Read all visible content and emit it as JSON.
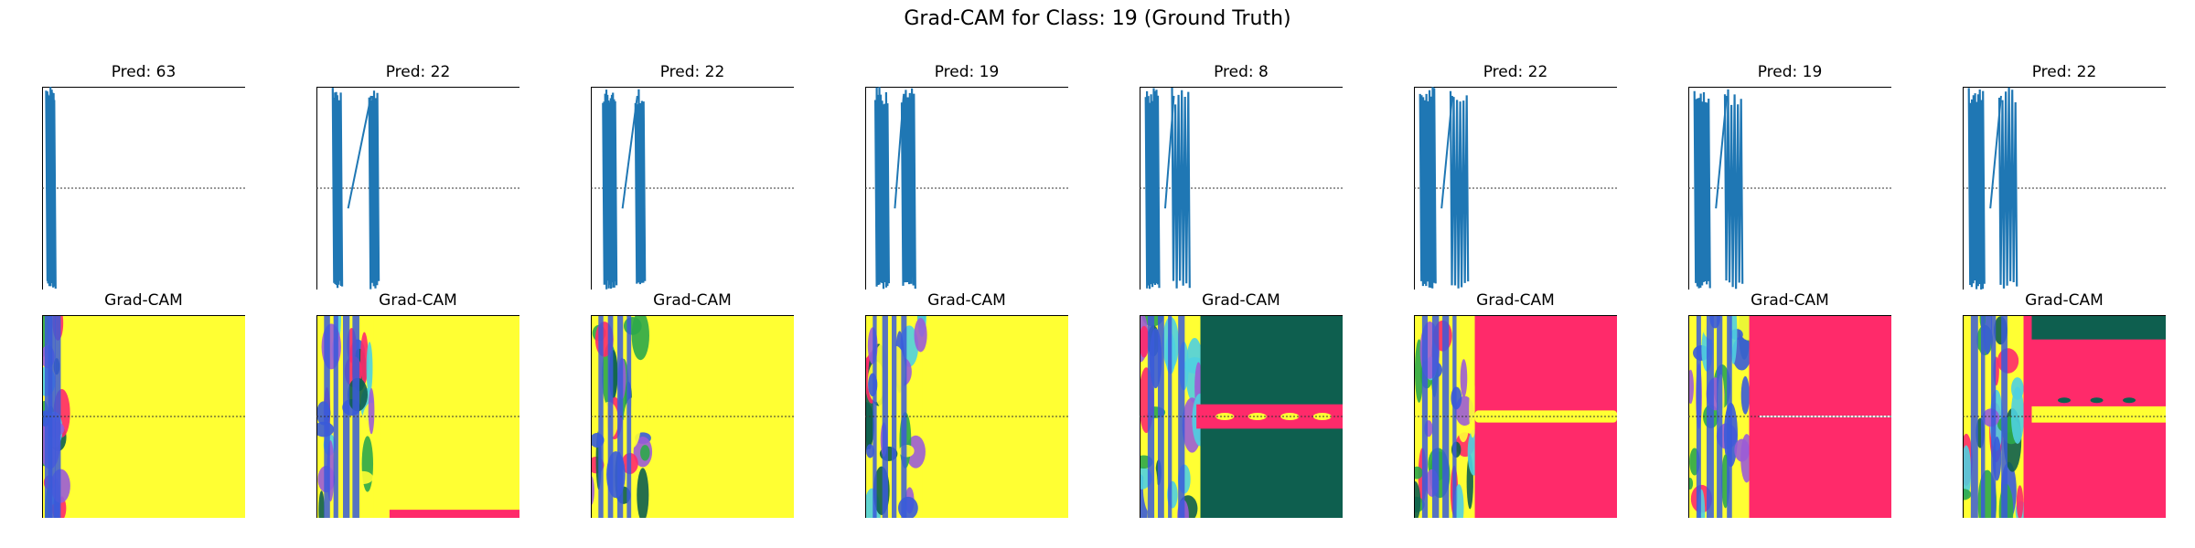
{
  "figure": {
    "title": "Grad-CAM for Class: 19 (Ground Truth)"
  },
  "colors": {
    "signal": "#1f77b4",
    "yellow": "#ffff33",
    "pink": "#ff2a6a",
    "dark_green": "#0e5f4f",
    "green": "#2ea84a",
    "blue": "#3a5bd9",
    "purple": "#9b5cd6",
    "cyan": "#4fd0e0"
  },
  "chart_data": [
    {
      "type": "line",
      "panel": 1,
      "row": "signal",
      "title": "Pred: 63"
    },
    {
      "type": "line",
      "panel": 2,
      "row": "signal",
      "title": "Pred: 22"
    },
    {
      "type": "line",
      "panel": 3,
      "row": "signal",
      "title": "Pred: 22"
    },
    {
      "type": "line",
      "panel": 4,
      "row": "signal",
      "title": "Pred: 19"
    },
    {
      "type": "line",
      "panel": 5,
      "row": "signal",
      "title": "Pred: 8"
    },
    {
      "type": "line",
      "panel": 6,
      "row": "signal",
      "title": "Pred: 22"
    },
    {
      "type": "line",
      "panel": 7,
      "row": "signal",
      "title": "Pred: 19"
    },
    {
      "type": "line",
      "panel": 8,
      "row": "signal",
      "title": "Pred: 22"
    },
    {
      "type": "heatmap",
      "panel": 1,
      "row": "cam",
      "title": "Grad-CAM",
      "dominant": "yellow"
    },
    {
      "type": "heatmap",
      "panel": 2,
      "row": "cam",
      "title": "Grad-CAM",
      "dominant": "yellow"
    },
    {
      "type": "heatmap",
      "panel": 3,
      "row": "cam",
      "title": "Grad-CAM",
      "dominant": "yellow"
    },
    {
      "type": "heatmap",
      "panel": 4,
      "row": "cam",
      "title": "Grad-CAM",
      "dominant": "yellow"
    },
    {
      "type": "heatmap",
      "panel": 5,
      "row": "cam",
      "title": "Grad-CAM",
      "dominant": "dark_green"
    },
    {
      "type": "heatmap",
      "panel": 6,
      "row": "cam",
      "title": "Grad-CAM",
      "dominant": "pink"
    },
    {
      "type": "heatmap",
      "panel": 7,
      "row": "cam",
      "title": "Grad-CAM",
      "dominant": "pink"
    },
    {
      "type": "heatmap",
      "panel": 8,
      "row": "cam",
      "title": "Grad-CAM",
      "dominant": "pink"
    }
  ]
}
